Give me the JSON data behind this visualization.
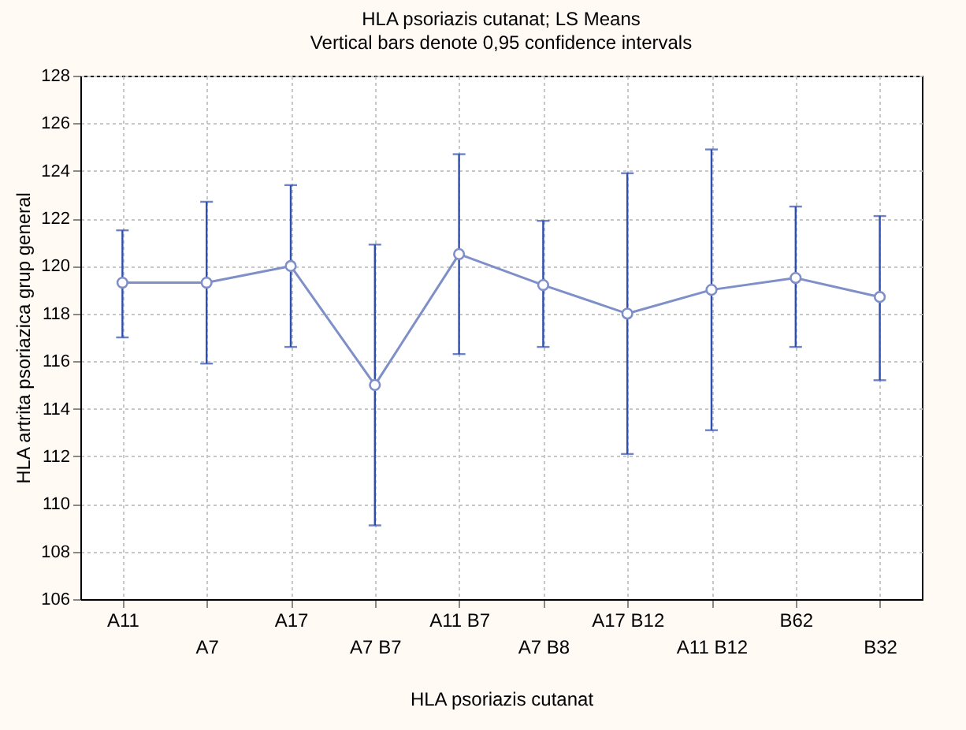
{
  "chart_data": {
    "type": "line",
    "title": "HLA psoriazis cutanat; LS Means",
    "subtitle": "Vertical bars denote 0,95 confidence intervals",
    "xlabel": "HLA psoriazis cutanat",
    "ylabel": "HLA artrita psoriazica grup general",
    "categories": [
      "A11",
      "A7",
      "A17",
      "A7 B7",
      "A11 B7",
      "A7 B8",
      "A17 B12",
      "A11 B12",
      "B62",
      "B32"
    ],
    "series": [
      {
        "color": "#7f8fc8",
        "values": [
          119.3,
          119.3,
          120.0,
          115.0,
          120.5,
          119.2,
          118.0,
          119.0,
          119.5,
          118.7
        ],
        "errors": [
          [
            117.0,
            121.5
          ],
          [
            115.9,
            122.7
          ],
          [
            116.6,
            123.4
          ],
          [
            109.1,
            120.9
          ],
          [
            116.3,
            124.7
          ],
          [
            116.6,
            121.9
          ],
          [
            112.1,
            123.9
          ],
          [
            113.1,
            124.9
          ],
          [
            116.6,
            122.5
          ],
          [
            115.2,
            122.1
          ]
        ]
      }
    ],
    "ylim": [
      106,
      128
    ],
    "yticks": [
      106,
      108,
      110,
      112,
      114,
      116,
      118,
      120,
      122,
      124,
      126,
      128
    ],
    "grid": true,
    "marker": "circle",
    "line_style": "solid"
  }
}
